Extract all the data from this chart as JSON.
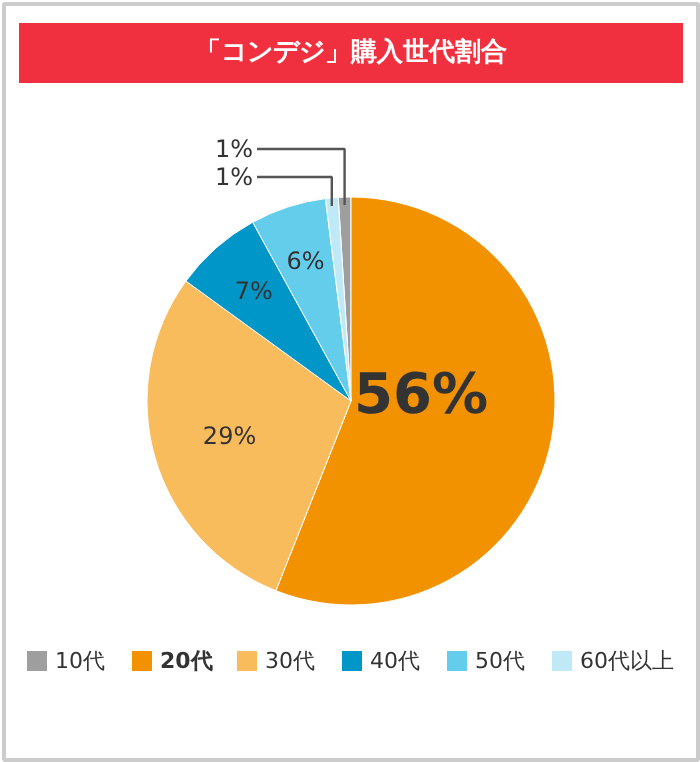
{
  "chart_data": {
    "type": "pie",
    "title": "「コンデジ」購入世代割合",
    "categories": [
      "10代",
      "20代",
      "30代",
      "40代",
      "50代",
      "60代以上"
    ],
    "values": [
      1,
      56,
      29,
      7,
      6,
      1
    ],
    "colors": [
      "#9e9e9e",
      "#f39200",
      "#f8bc5c",
      "#0096c8",
      "#64cdeb",
      "#bfe9f7"
    ],
    "value_labels": [
      "1%",
      "56%",
      "29%",
      "7%",
      "6%",
      "1%"
    ],
    "legend": "bottom"
  }
}
